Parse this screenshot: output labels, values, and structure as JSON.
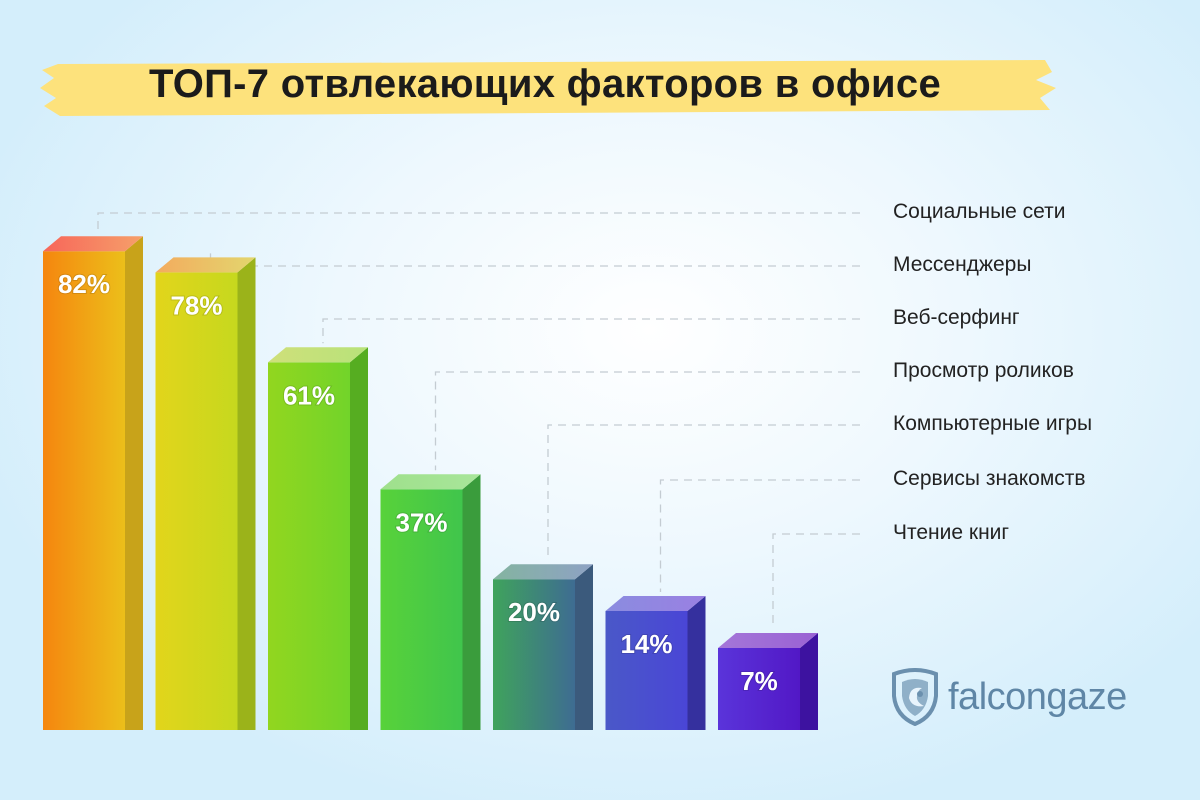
{
  "title": "ТОП-7 отвлекающих факторов в офисе",
  "brand": {
    "name": "falcongaze",
    "color": "#5f86a6"
  },
  "chart_data": {
    "type": "bar",
    "title": "ТОП-7 отвлекающих факторов в офисе",
    "categories": [
      "Социальные сети",
      "Мессенджеры",
      "Веб-серфинг",
      "Просмотр роликов",
      "Компьютерные игры",
      "Сервисы знакомств",
      "Чтение книг"
    ],
    "values": [
      82,
      78,
      61,
      37,
      20,
      14,
      7
    ],
    "value_labels": [
      "82%",
      "78%",
      "61%",
      "37%",
      "20%",
      "14%",
      "7%"
    ],
    "unit": "%",
    "legend_placement": "right",
    "grid": false,
    "colors": [
      {
        "front": [
          "#f5860f",
          "#ecbf1a"
        ],
        "side": "#c8a31a",
        "top": [
          "#f7665a",
          "#f6a06a"
        ]
      },
      {
        "front": [
          "#e2d51b",
          "#c6d81e"
        ],
        "side": "#9bb31a",
        "top": [
          "#f3ab5e",
          "#e3d66e"
        ]
      },
      {
        "front": [
          "#92d61f",
          "#72d42a"
        ],
        "side": "#56ad21",
        "top": [
          "#cfe07a",
          "#b8e27a"
        ]
      },
      {
        "front": [
          "#58d23a",
          "#40c54c"
        ],
        "side": "#3a9c3c",
        "top": [
          "#9fe08c",
          "#a8e69a"
        ]
      },
      {
        "front": [
          "#3fa35c",
          "#3e6c92"
        ],
        "side": "#3b5a7c",
        "top": [
          "#84b4a0",
          "#8ea2c4"
        ]
      },
      {
        "front": [
          "#4a58c8",
          "#4a46d6"
        ],
        "side": "#35309e",
        "top": [
          "#8a8ce0",
          "#9a80e2"
        ]
      },
      {
        "front": [
          "#5a34da",
          "#5218c6"
        ],
        "side": "#3d12a0",
        "top": [
          "#a476d8",
          "#9a62d4"
        ]
      }
    ]
  }
}
